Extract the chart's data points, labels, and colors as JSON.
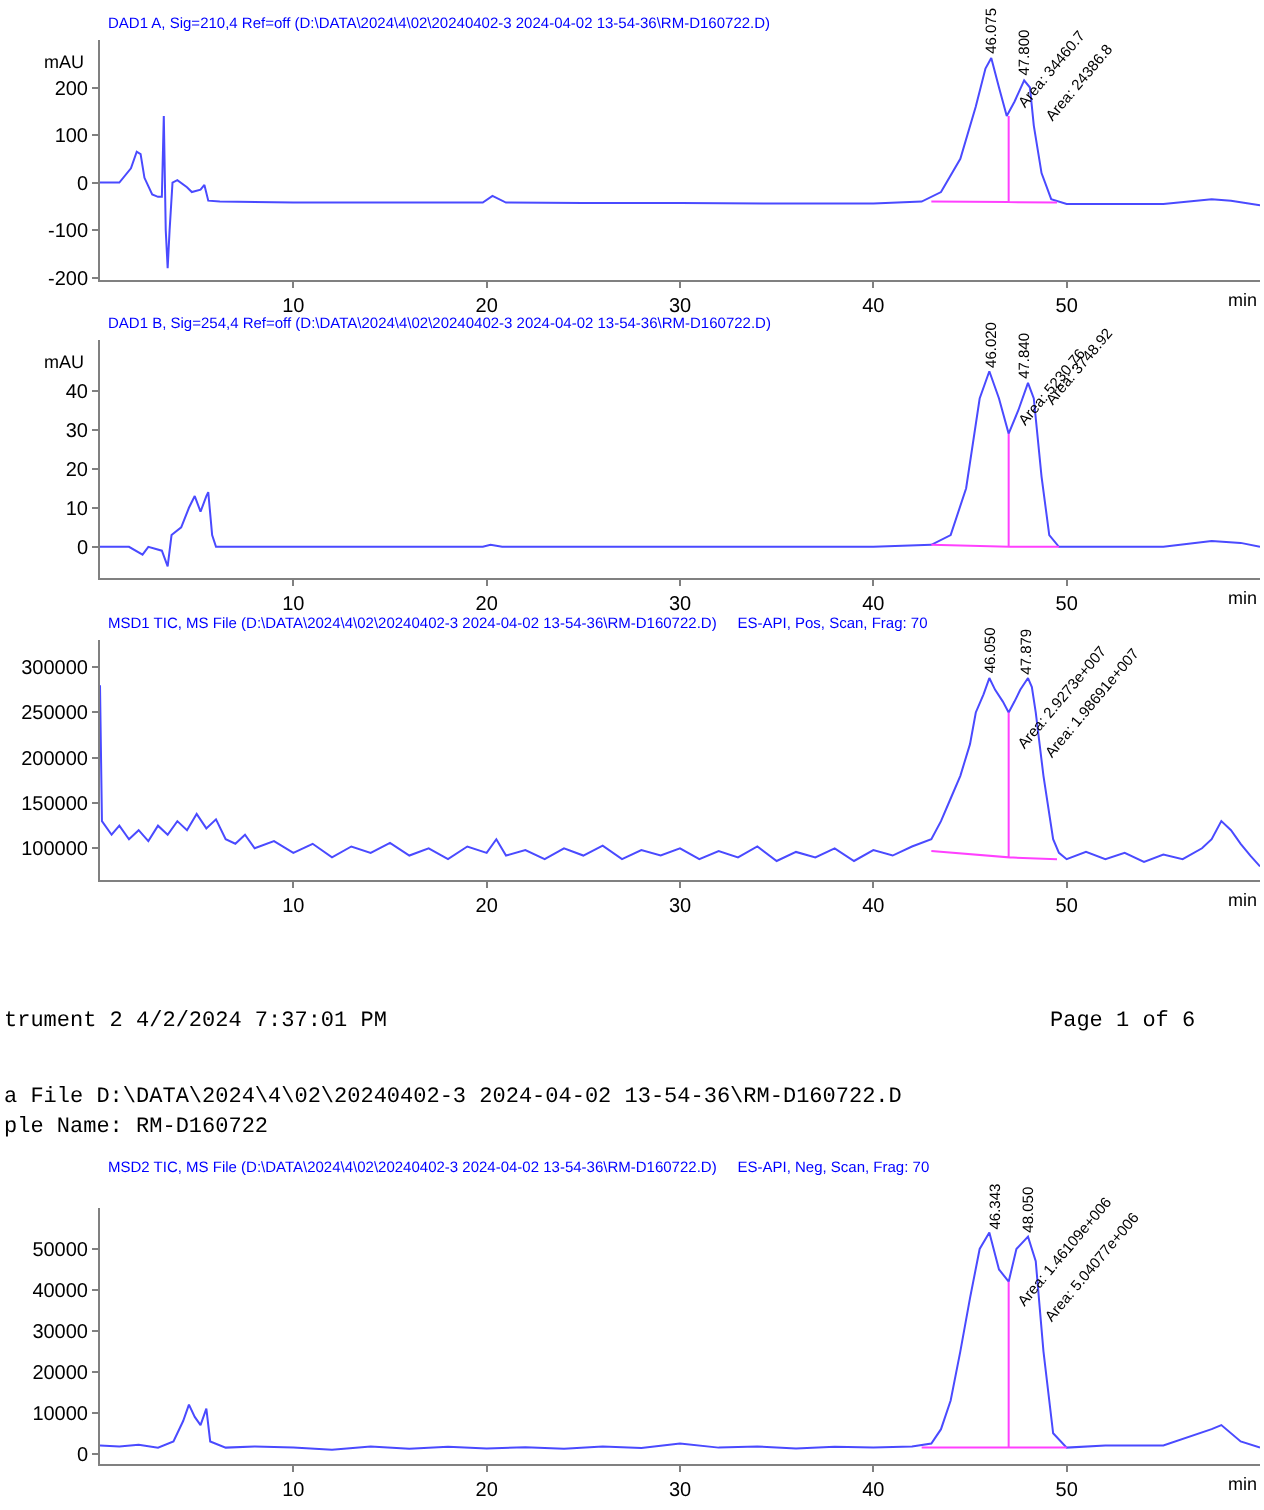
{
  "chart_data": [
    {
      "type": "line",
      "title": "DAD1 A, Sig=210,4 Ref=off (D:\\DATA\\2024\\4\\02\\20240402-3 2024-04-02 13-54-36\\RM-D160722.D)",
      "xlabel": "min",
      "ylabel": "mAU",
      "xlim": [
        0,
        60
      ],
      "xticks": [
        10,
        20,
        30,
        40,
        50
      ],
      "ylim": [
        -205,
        300
      ],
      "yticks": [
        -200,
        -100,
        0,
        100,
        200
      ],
      "grid": false,
      "series": [
        {
          "color": "#4a4aff",
          "x": [
            0,
            1.0,
            1.6,
            1.9,
            2.1,
            2.3,
            2.7,
            3.0,
            3.2,
            3.3,
            3.4,
            3.5,
            3.6,
            3.75,
            4.0,
            4.5,
            4.75,
            5.2,
            5.4,
            5.6,
            6.2,
            10,
            15,
            19.8,
            20.3,
            21,
            25,
            30,
            35,
            40,
            42.5,
            43.5,
            44.5,
            45.3,
            45.8,
            46.1,
            46.5,
            46.9,
            47.3,
            47.8,
            48.1,
            48.3,
            48.7,
            49.2,
            50,
            55,
            57.5,
            58.5,
            60
          ],
          "values": [
            0,
            0,
            30,
            65,
            60,
            10,
            -25,
            -30,
            -30,
            140,
            -100,
            -180,
            -100,
            0,
            5,
            -10,
            -20,
            -15,
            -5,
            -38,
            -40,
            -42,
            -42,
            -42,
            -28,
            -42,
            -43,
            -43,
            -44,
            -44,
            -40,
            -20,
            50,
            160,
            240,
            262,
            200,
            140,
            170,
            215,
            200,
            120,
            20,
            -35,
            -45,
            -45,
            -35,
            -38,
            -48
          ]
        },
        {
          "type": "line",
          "color": "#ff40ff",
          "x": [
            43,
            47,
            47,
            47,
            49.5
          ],
          "values": [
            -40,
            -41,
            140,
            -41,
            -42
          ]
        }
      ],
      "annotations": [
        {
          "text": "46.075",
          "x": 46.075,
          "y": 262
        },
        {
          "text": "47.800",
          "x": 47.8,
          "y": 215
        },
        {
          "text": "Area: 34460.7",
          "x": 47.0,
          "y": 140
        },
        {
          "text": "Area: 24386.8",
          "x": 48.4,
          "y": 110
        }
      ]
    },
    {
      "type": "line",
      "title": "DAD1 B, Sig=254,4 Ref=off (D:\\DATA\\2024\\4\\02\\20240402-3 2024-04-02 13-54-36\\RM-D160722.D)",
      "xlabel": "min",
      "ylabel": "mAU",
      "xlim": [
        0,
        60
      ],
      "xticks": [
        10,
        20,
        30,
        40,
        50
      ],
      "ylim": [
        -8,
        53
      ],
      "yticks": [
        0,
        10,
        20,
        30,
        40
      ],
      "grid": false,
      "series": [
        {
          "color": "#4a4aff",
          "x": [
            0,
            1.5,
            2.2,
            2.5,
            3.2,
            3.5,
            3.7,
            4.2,
            4.6,
            4.9,
            5.2,
            5.5,
            5.6,
            5.8,
            6.0,
            10,
            15,
            19.8,
            20.2,
            20.8,
            25,
            30,
            35,
            40,
            43,
            44,
            44.8,
            45.5,
            46,
            46.5,
            47,
            47.5,
            48,
            48.3,
            48.7,
            49.1,
            49.6,
            55,
            57.5,
            59,
            60
          ],
          "values": [
            0,
            0,
            -2,
            0,
            -1,
            -5,
            3,
            5,
            10,
            13,
            9,
            13,
            14,
            3,
            0,
            0,
            0,
            0,
            0.5,
            0,
            0,
            0,
            0,
            0,
            0.5,
            3,
            15,
            38,
            45,
            38,
            29,
            35,
            42,
            38,
            18,
            3,
            0,
            0,
            1.5,
            1,
            0
          ]
        },
        {
          "type": "line",
          "color": "#ff40ff",
          "x": [
            43,
            47,
            47,
            47,
            49.6
          ],
          "values": [
            0.5,
            0,
            29,
            0,
            0
          ]
        }
      ],
      "annotations": [
        {
          "text": "46.020",
          "x": 46.02,
          "y": 45
        },
        {
          "text": "47.840",
          "x": 47.84,
          "y": 42
        },
        {
          "text": "Area: 5230.76",
          "x": 47.0,
          "y": 29
        },
        {
          "text": "Area: 3748.92",
          "x": 48.4,
          "y": 34
        }
      ]
    },
    {
      "type": "line",
      "title": "MSD1 TIC, MS File (D:\\DATA\\2024\\4\\02\\20240402-3 2024-04-02 13-54-36\\RM-D160722.D)     ES-API, Pos, Scan, Frag: 70",
      "xlabel": "min",
      "xlim": [
        0,
        60
      ],
      "xticks": [
        10,
        20,
        30,
        40,
        50
      ],
      "ylim": [
        65000,
        330000
      ],
      "yticks": [
        100000,
        150000,
        200000,
        250000,
        300000
      ],
      "grid": false,
      "series": [
        {
          "color": "#4a4aff",
          "x": [
            0,
            0.1,
            0.6,
            1,
            1.5,
            2,
            2.5,
            3,
            3.5,
            4,
            4.5,
            5,
            5.5,
            6,
            6.5,
            7,
            7.5,
            8,
            9,
            10,
            11,
            12,
            13,
            14,
            15,
            16,
            17,
            18,
            19,
            20,
            20.5,
            21,
            22,
            23,
            24,
            25,
            26,
            27,
            28,
            29,
            30,
            31,
            32,
            33,
            34,
            35,
            36,
            37,
            38,
            39,
            40,
            41,
            42,
            43,
            43.5,
            44,
            44.5,
            45,
            45.3,
            45.7,
            46,
            46.3,
            46.7,
            47,
            47.3,
            47.6,
            48,
            48.2,
            48.4,
            48.8,
            49.3,
            49.6,
            50,
            51,
            52,
            53,
            54,
            55,
            56,
            57,
            57.5,
            58,
            58.5,
            59,
            59.5,
            60
          ],
          "values": [
            280000,
            130000,
            115000,
            125000,
            110000,
            120000,
            108000,
            125000,
            115000,
            130000,
            120000,
            138000,
            122000,
            132000,
            110000,
            105000,
            115000,
            100000,
            108000,
            95000,
            105000,
            90000,
            102000,
            95000,
            106000,
            92000,
            100000,
            88000,
            102000,
            95000,
            110000,
            92000,
            98000,
            88000,
            100000,
            92000,
            103000,
            88000,
            98000,
            92000,
            100000,
            88000,
            97000,
            90000,
            102000,
            86000,
            96000,
            90000,
            100000,
            86000,
            98000,
            92000,
            102000,
            110000,
            130000,
            155000,
            180000,
            215000,
            250000,
            270000,
            288000,
            275000,
            262000,
            250000,
            262000,
            275000,
            288000,
            278000,
            250000,
            180000,
            110000,
            95000,
            88000,
            96000,
            88000,
            95000,
            85000,
            93000,
            88000,
            100000,
            110000,
            130000,
            120000,
            105000,
            92000,
            80000
          ]
        },
        {
          "type": "line",
          "color": "#ff40ff",
          "x": [
            43,
            47,
            47,
            47,
            49.5
          ],
          "values": [
            97000,
            90000,
            250000,
            90000,
            88000
          ]
        }
      ],
      "annotations": [
        {
          "text": "46.050",
          "x": 46.05,
          "y": 288000
        },
        {
          "text": "47.879",
          "x": 47.879,
          "y": 288000
        },
        {
          "text": "Area: 2.9273e+007",
          "x": 47.0,
          "y": 200000
        },
        {
          "text": "Area: 1.98691e+007",
          "x": 48.4,
          "y": 190000
        },
        "trument 2 4/2/2024 7:37:01 PM",
        "Page 1 of 6"
      ]
    },
    {
      "type": "line",
      "title": "MSD2 TIC, MS File (D:\\DATA\\2024\\4\\02\\20240402-3 2024-04-02 13-54-36\\RM-D160722.D)     ES-API, Neg, Scan, Frag: 70",
      "xlabel": "min",
      "xlim": [
        0,
        60
      ],
      "xticks": [
        10,
        20,
        30,
        40,
        50
      ],
      "ylim": [
        -2500,
        60000
      ],
      "yticks": [
        0,
        10000,
        20000,
        30000,
        40000,
        50000
      ],
      "grid": false,
      "series": [
        {
          "color": "#4a4aff",
          "x": [
            0,
            1,
            2,
            3,
            3.8,
            4.3,
            4.6,
            4.9,
            5.2,
            5.5,
            5.7,
            6.5,
            8,
            10,
            12,
            14,
            16,
            18,
            20,
            22,
            24,
            26,
            28,
            30,
            32,
            34,
            36,
            38,
            40,
            42,
            43,
            43.5,
            44,
            44.5,
            45,
            45.5,
            46,
            46.5,
            47,
            47.4,
            48,
            48.4,
            48.8,
            49.3,
            50,
            52,
            55,
            57.5,
            58,
            59,
            60
          ],
          "values": [
            2000,
            1800,
            2200,
            1500,
            3000,
            8000,
            12000,
            9000,
            7000,
            11000,
            3000,
            1500,
            1800,
            1500,
            1000,
            1800,
            1200,
            1700,
            1300,
            1600,
            1200,
            1800,
            1400,
            2500,
            1500,
            1800,
            1300,
            1700,
            1500,
            1800,
            2500,
            6000,
            13000,
            25000,
            38000,
            50000,
            54000,
            45000,
            42000,
            50000,
            53000,
            47000,
            25000,
            5000,
            1500,
            2000,
            2000,
            6000,
            7000,
            3000,
            1500
          ]
        },
        {
          "type": "line",
          "color": "#ff40ff",
          "x": [
            42.5,
            47,
            47,
            47,
            50
          ],
          "values": [
            1500,
            1500,
            42000,
            1500,
            1500
          ]
        }
      ],
      "annotations": [
        {
          "text": "46.343",
          "x": 46.343,
          "y": 54000
        },
        {
          "text": "48.050",
          "x": 48.05,
          "y": 53000
        },
        {
          "text": "Area: 1.46109e+006",
          "x": 47.0,
          "y": 34000
        },
        {
          "text": "Area: 5.04077e+006",
          "x": 48.4,
          "y": 30000
        },
        "a File D:\\DATA\\2024\\4\\02\\20240402-3 2024-04-02 13-54-36\\RM-D160722.D",
        "ple Name: RM-D160722"
      ]
    }
  ]
}
